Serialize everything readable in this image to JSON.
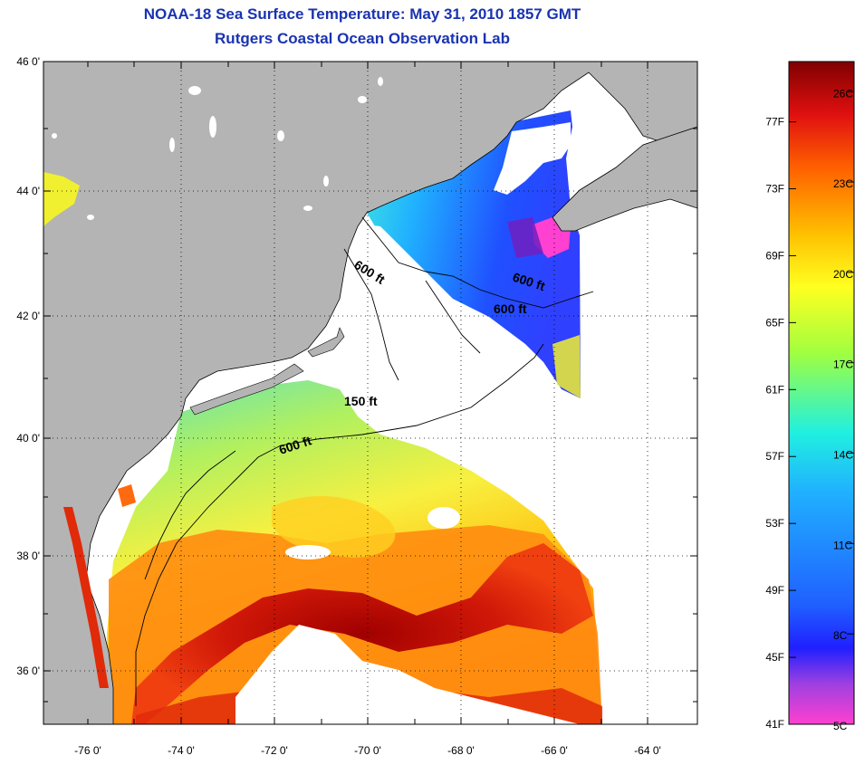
{
  "title": {
    "line1": "NOAA-18 Sea Surface Temperature:  May 31, 2010 1857 GMT",
    "line2": "Rutgers Coastal Ocean Observation Lab"
  },
  "map": {
    "lat_ticks": [
      "46 0'",
      "44 0'",
      "42 0'",
      "40 0'",
      "38 0'",
      "36 0'"
    ],
    "lon_ticks": [
      "-76 0'",
      "-74 0'",
      "-72 0'",
      "-70 0'",
      "-68 0'",
      "-66 0'",
      "-64 0'"
    ],
    "lat_range": [
      35,
      46
    ],
    "lon_range": [
      -77,
      -63
    ],
    "isobath_labels": [
      "600 ft",
      "600 ft",
      "600 ft",
      "150 ft",
      "600 ft"
    ],
    "colors": {
      "land": "#b4b4b4",
      "coast": "#000000",
      "frame": "#000000"
    }
  },
  "colorbar": {
    "fahrenheit": [
      "77F",
      "73F",
      "69F",
      "65F",
      "61F",
      "57F",
      "53F",
      "49F",
      "45F",
      "41F"
    ],
    "celsius": [
      "26C",
      "23C",
      "20C",
      "17C",
      "14C",
      "11C",
      "8C",
      "5C"
    ],
    "min_c": 5,
    "max_c": 27
  }
}
